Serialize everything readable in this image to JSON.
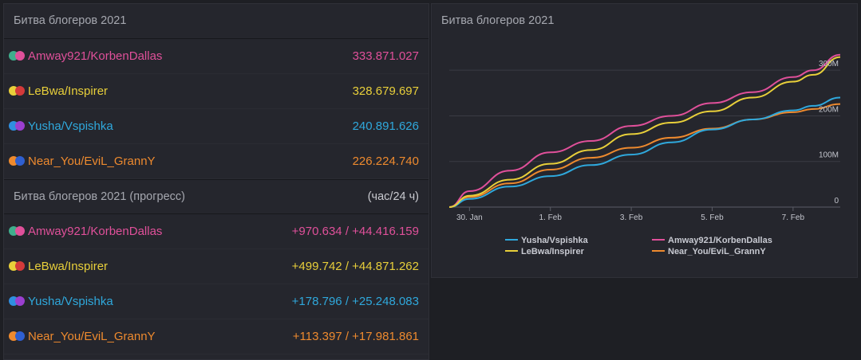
{
  "totals": {
    "title": "Битва блогеров 2021",
    "rows": [
      {
        "name": "Amway921/KorbenDallas",
        "value": "333.871.027",
        "color": "#e0509a",
        "dot1": "#3fae8c",
        "dot2": "#e0509a"
      },
      {
        "name": "LeBwa/Inspirer",
        "value": "328.679.697",
        "color": "#e8cf3a",
        "dot1": "#e8cf3a",
        "dot2": "#d43a3a"
      },
      {
        "name": "Yusha/Vspishka",
        "value": "240.891.626",
        "color": "#2fa8dc",
        "dot1": "#2f8fe0",
        "dot2": "#9b3fd0"
      },
      {
        "name": "Near_You/EviL_GrannY",
        "value": "226.224.740",
        "color": "#ee8a2e",
        "dot1": "#ee8a2e",
        "dot2": "#2f5fd0"
      }
    ]
  },
  "progress": {
    "title": "Битва блогеров 2021 (прогресс)",
    "unit": "(час/24 ч)",
    "rows": [
      {
        "name": "Amway921/KorbenDallas",
        "value": "+970.634 / +44.416.159",
        "color": "#e0509a",
        "dot1": "#3fae8c",
        "dot2": "#e0509a"
      },
      {
        "name": "LeBwa/Inspirer",
        "value": "+499.742 / +44.871.262",
        "color": "#e8cf3a",
        "dot1": "#e8cf3a",
        "dot2": "#d43a3a"
      },
      {
        "name": "Yusha/Vspishka",
        "value": "+178.796 / +25.248.083",
        "color": "#2fa8dc",
        "dot1": "#2f8fe0",
        "dot2": "#9b3fd0"
      },
      {
        "name": "Near_You/EviL_GrannY",
        "value": "+113.397 / +17.981.861",
        "color": "#ee8a2e",
        "dot1": "#ee8a2e",
        "dot2": "#2f5fd0"
      }
    ]
  },
  "chart_data": {
    "type": "line",
    "title": "Битва блогеров 2021",
    "xlabel": "",
    "ylabel": "",
    "x_ticks": [
      "30. Jan",
      "1. Feb",
      "3. Feb",
      "5. Feb",
      "7. Feb"
    ],
    "y_ticks": [
      "0",
      "100M",
      "200M",
      "300M"
    ],
    "ylim": [
      0,
      330000000
    ],
    "grid": true,
    "legend_position": "bottom",
    "x_range": [
      "2021-01-29T12:00",
      "2021-02-08T04:00"
    ],
    "series": [
      {
        "name": "Yusha/Vspishka",
        "color": "#2fa8dc",
        "x": [
          "2021-01-29T12:00",
          "2021-01-30T00:00",
          "2021-01-31T00:00",
          "2021-02-01T00:00",
          "2021-02-02T00:00",
          "2021-02-03T00:00",
          "2021-02-04T00:00",
          "2021-02-05T00:00",
          "2021-02-06T00:00",
          "2021-02-07T00:00",
          "2021-02-07T12:00",
          "2021-02-08T04:00"
        ],
        "y": [
          0,
          18000000,
          45000000,
          68000000,
          92000000,
          115000000,
          142000000,
          170000000,
          192000000,
          212000000,
          222000000,
          240000000
        ]
      },
      {
        "name": "Amway921/KorbenDallas",
        "color": "#e0509a",
        "x": [
          "2021-01-29T12:00",
          "2021-01-30T00:00",
          "2021-01-31T00:00",
          "2021-02-01T00:00",
          "2021-02-02T00:00",
          "2021-02-03T00:00",
          "2021-02-04T00:00",
          "2021-02-05T00:00",
          "2021-02-06T00:00",
          "2021-02-07T00:00",
          "2021-02-07T12:00",
          "2021-02-08T04:00"
        ],
        "y": [
          0,
          35000000,
          80000000,
          120000000,
          145000000,
          178000000,
          200000000,
          228000000,
          252000000,
          285000000,
          300000000,
          334000000
        ]
      },
      {
        "name": "LeBwa/Inspirer",
        "color": "#e8cf3a",
        "x": [
          "2021-01-29T12:00",
          "2021-01-30T00:00",
          "2021-01-31T00:00",
          "2021-02-01T00:00",
          "2021-02-02T00:00",
          "2021-02-03T00:00",
          "2021-02-04T00:00",
          "2021-02-05T00:00",
          "2021-02-06T00:00",
          "2021-02-07T00:00",
          "2021-02-07T12:00",
          "2021-02-08T04:00"
        ],
        "y": [
          0,
          25000000,
          60000000,
          95000000,
          125000000,
          160000000,
          185000000,
          210000000,
          240000000,
          275000000,
          290000000,
          329000000
        ]
      },
      {
        "name": "Near_You/EviL_GrannY",
        "color": "#ee8a2e",
        "x": [
          "2021-01-29T12:00",
          "2021-01-30T00:00",
          "2021-01-31T00:00",
          "2021-02-01T00:00",
          "2021-02-02T00:00",
          "2021-02-03T00:00",
          "2021-02-04T00:00",
          "2021-02-05T00:00",
          "2021-02-06T00:00",
          "2021-02-07T00:00",
          "2021-02-07T12:00",
          "2021-02-08T04:00"
        ],
        "y": [
          0,
          22000000,
          52000000,
          82000000,
          108000000,
          130000000,
          152000000,
          172000000,
          192000000,
          208000000,
          215000000,
          226000000
        ]
      }
    ]
  }
}
